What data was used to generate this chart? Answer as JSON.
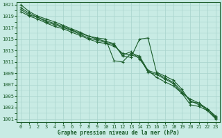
{
  "xlabel": "Graphe pression niveau de la mer (hPa)",
  "bg_color": "#c8ebe4",
  "grid_color": "#a8d4cc",
  "line_color": "#1a5c2a",
  "text_color": "#1a5c2a",
  "ylim": [
    1000.5,
    1021.5
  ],
  "xlim": [
    -0.5,
    23.5
  ],
  "yticks": [
    1001,
    1003,
    1005,
    1007,
    1009,
    1011,
    1013,
    1015,
    1017,
    1019,
    1021
  ],
  "xticks": [
    0,
    1,
    2,
    3,
    4,
    5,
    6,
    7,
    8,
    9,
    10,
    11,
    12,
    13,
    14,
    15,
    16,
    17,
    18,
    19,
    20,
    21,
    22,
    23
  ],
  "hours": [
    0,
    1,
    2,
    3,
    4,
    5,
    6,
    7,
    8,
    9,
    10,
    11,
    12,
    13,
    14,
    15,
    16,
    17,
    18,
    19,
    20,
    21,
    22,
    23
  ],
  "line1": [
    1021.0,
    1019.8,
    1019.0,
    1018.5,
    1018.0,
    1017.4,
    1016.8,
    1016.2,
    1015.5,
    1015.2,
    1015.0,
    1011.2,
    1011.0,
    1012.5,
    1012.0,
    1009.5,
    1008.3,
    1007.5,
    1006.8,
    1005.5,
    1003.5,
    1003.2,
    1002.5,
    1001.0
  ],
  "line2": [
    1020.5,
    1019.5,
    1018.8,
    1018.2,
    1017.7,
    1017.2,
    1016.6,
    1016.0,
    1015.5,
    1015.0,
    1014.6,
    1014.2,
    1012.0,
    1011.8,
    1015.0,
    1015.2,
    1009.2,
    1008.5,
    1007.8,
    1006.2,
    1004.0,
    1003.8,
    1002.8,
    1001.3
  ],
  "line3": [
    1020.2,
    1019.2,
    1018.8,
    1018.0,
    1017.5,
    1017.0,
    1016.5,
    1015.8,
    1015.2,
    1014.8,
    1014.4,
    1014.0,
    1012.2,
    1012.8,
    1011.5,
    1009.5,
    1009.0,
    1008.2,
    1007.4,
    1005.8,
    1004.2,
    1003.5,
    1002.8,
    1001.5
  ],
  "line4": [
    1019.8,
    1019.0,
    1018.5,
    1017.8,
    1017.2,
    1016.8,
    1016.2,
    1015.6,
    1015.0,
    1014.5,
    1014.2,
    1013.8,
    1012.5,
    1012.2,
    1011.8,
    1009.2,
    1008.8,
    1008.0,
    1007.2,
    1005.5,
    1004.5,
    1003.8,
    1002.5,
    1001.2
  ]
}
